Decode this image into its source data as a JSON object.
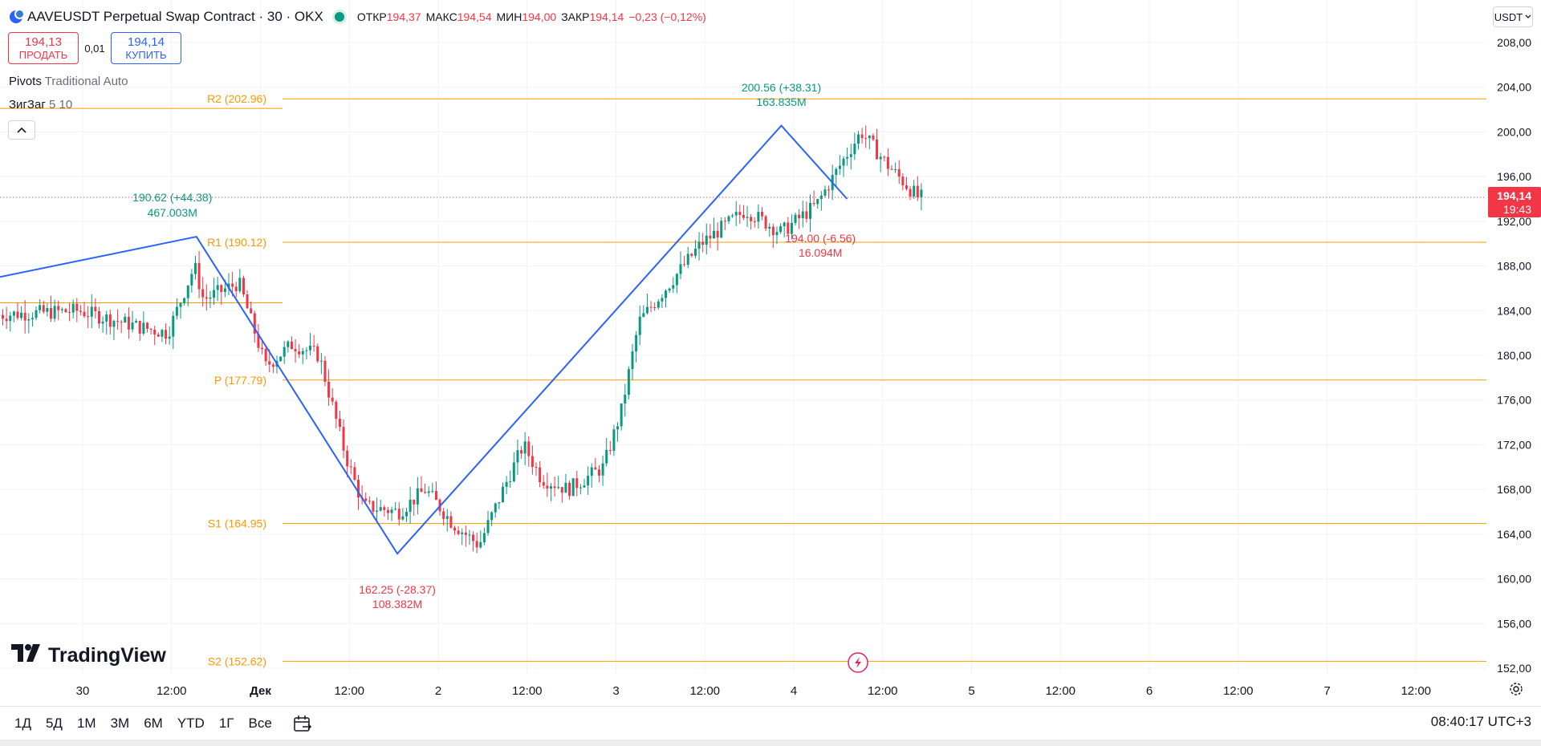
{
  "header": {
    "title": "AAVEUSDT Perpetual Swap Contract · 30 · OKX",
    "ohlc": [
      {
        "label": "ОТКР",
        "value": "194,37"
      },
      {
        "label": "МАКС",
        "value": "194,54"
      },
      {
        "label": "МИН",
        "value": "194,00"
      },
      {
        "label": "ЗАКР",
        "value": "194,14"
      }
    ],
    "change": "−0,23 (−0,12%)"
  },
  "trade": {
    "sell_price": "194,13",
    "sell_label": "ПРОДАТЬ",
    "spread": "0,01",
    "buy_price": "194,14",
    "buy_label": "КУПИТЬ"
  },
  "indicators": [
    {
      "name": "Pivots",
      "args": "Traditional Auto"
    },
    {
      "name": "ЗигЗаг",
      "args": "5 10"
    }
  ],
  "currency_button": "USDT",
  "logo_text": "TradingView",
  "ranges": [
    "1Д",
    "5Д",
    "1М",
    "3М",
    "6М",
    "YTD",
    "1Г",
    "Все"
  ],
  "clock": "08:40:17 UTC+3",
  "colors": {
    "up": "#089981",
    "down": "#f23645",
    "pivot": "#ff9800",
    "zigzag": "#2962ff",
    "grid": "#f0f3fa"
  },
  "chart_data": {
    "type": "candlestick",
    "price_axis": {
      "min": 150,
      "max": 210,
      "ticks": [
        "208,00",
        "204,00",
        "200,00",
        "196,00",
        "192,00",
        "188,00",
        "184,00",
        "180,00",
        "176,00",
        "172,00",
        "168,00",
        "164,00",
        "160,00",
        "156,00",
        "152,00"
      ]
    },
    "time_axis": {
      "labels": [
        "30",
        "12:00",
        "Дек",
        "12:00",
        "2",
        "12:00",
        "3",
        "12:00",
        "4",
        "12:00",
        "5",
        "12:00",
        "6",
        "12:00",
        "7",
        "12:00"
      ]
    },
    "last_price": {
      "value": "194,14",
      "countdown": "19:43",
      "price": 194.14
    },
    "pivots": [
      {
        "label": "R2 (202.96)",
        "value": 202.96
      },
      {
        "label": "R1 (190.12)",
        "value": 190.12
      },
      {
        "label": "P (177.79)",
        "value": 177.79
      },
      {
        "label": "S1 (164.95)",
        "value": 164.95
      },
      {
        "label": "S2 (152.62)",
        "value": 152.62
      }
    ],
    "previous_period_levels": [
      202.1,
      184.7
    ],
    "zigzag_labels": [
      {
        "price": "190.62 (+44.38)",
        "volume": "467.003M",
        "kind": "high"
      },
      {
        "price": "162.25 (-28.37)",
        "volume": "108.382M",
        "kind": "low"
      },
      {
        "price": "200.56 (+38.31)",
        "volume": "163.835M",
        "kind": "high"
      },
      {
        "price": "194.00 (-6.56)",
        "volume": "16.094M",
        "kind": "low"
      }
    ],
    "zigzag_points": [
      {
        "time": "29 Nov 09:00",
        "price": 187.0
      },
      {
        "time": "30 Nov 10:00",
        "price": 190.62
      },
      {
        "time": "1 Dec 19:00",
        "price": 162.25
      },
      {
        "time": "4 Dec 02:00",
        "price": 200.56
      },
      {
        "time": "4 Dec 07:00",
        "price": 194.0
      }
    ]
  }
}
